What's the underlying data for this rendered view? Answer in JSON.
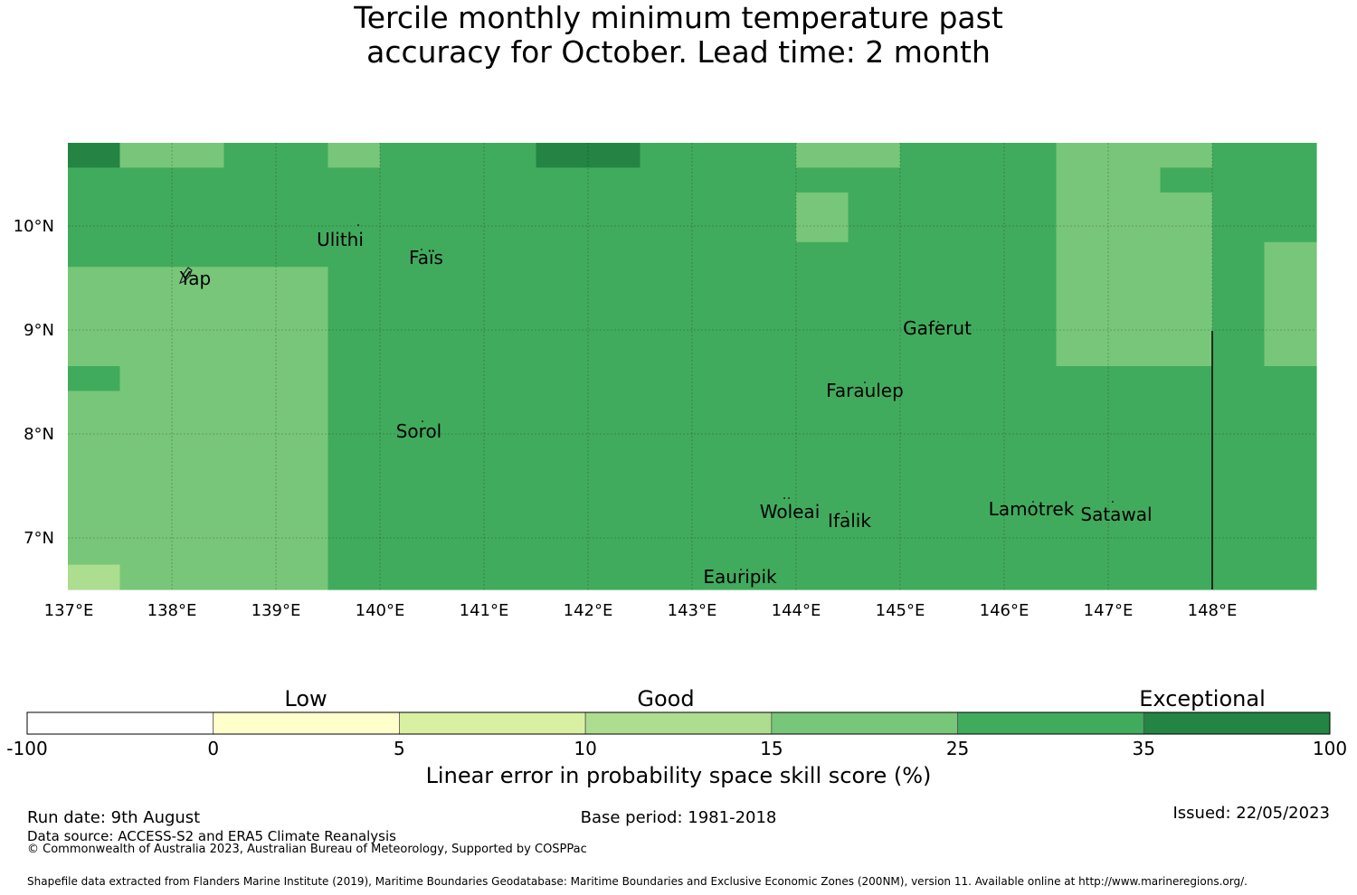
{
  "title": {
    "line1": "Tercile monthly minimum temperature past",
    "line2": "accuracy for October. Lead time: 2 month"
  },
  "map": {
    "lon_range": [
      137.0,
      149.0
    ],
    "lat_range": [
      6.5,
      10.8
    ],
    "lon_ticks": [
      {
        "value": 137,
        "label": "137°E"
      },
      {
        "value": 138,
        "label": "138°E"
      },
      {
        "value": 139,
        "label": "139°E"
      },
      {
        "value": 140,
        "label": "140°E"
      },
      {
        "value": 141,
        "label": "141°E"
      },
      {
        "value": 142,
        "label": "142°E"
      },
      {
        "value": 143,
        "label": "143°E"
      },
      {
        "value": 144,
        "label": "144°E"
      },
      {
        "value": 145,
        "label": "145°E"
      },
      {
        "value": 146,
        "label": "146°E"
      },
      {
        "value": 147,
        "label": "147°E"
      },
      {
        "value": 148,
        "label": "148°E"
      }
    ],
    "lat_ticks": [
      {
        "value": 10,
        "label": "10°N"
      },
      {
        "value": 9,
        "label": "9°N"
      },
      {
        "value": 8,
        "label": "8°N"
      },
      {
        "value": 7,
        "label": "7°N"
      }
    ],
    "grid_cell_deg": 0.833,
    "color_key": [
      "#ffffff",
      "#ffffcc",
      "#d9f0a3",
      "#addd8e",
      "#78c679",
      "#41ab5d",
      "#238443"
    ],
    "cells": [
      [
        6,
        4,
        4,
        5,
        5,
        4,
        5,
        5,
        5,
        6,
        6,
        5,
        5,
        5,
        4,
        4,
        5,
        5,
        5,
        4,
        4,
        4,
        5,
        5
      ],
      [
        5,
        5,
        5,
        5,
        5,
        5,
        5,
        5,
        5,
        5,
        5,
        5,
        5,
        5,
        5,
        5,
        5,
        5,
        5,
        4,
        4,
        5,
        5,
        5
      ],
      [
        5,
        5,
        5,
        5,
        5,
        5,
        5,
        5,
        5,
        5,
        5,
        5,
        5,
        5,
        4,
        5,
        5,
        5,
        5,
        4,
        4,
        4,
        5,
        5
      ],
      [
        5,
        5,
        5,
        5,
        5,
        5,
        5,
        5,
        5,
        5,
        5,
        5,
        5,
        5,
        4,
        5,
        5,
        5,
        5,
        4,
        4,
        4,
        5,
        5
      ],
      [
        5,
        5,
        5,
        5,
        5,
        5,
        5,
        5,
        5,
        5,
        5,
        5,
        5,
        5,
        5,
        5,
        5,
        5,
        5,
        4,
        4,
        4,
        5,
        4
      ],
      [
        4,
        4,
        4,
        4,
        4,
        5,
        5,
        5,
        5,
        5,
        5,
        5,
        5,
        5,
        5,
        5,
        5,
        5,
        5,
        4,
        4,
        4,
        5,
        4
      ],
      [
        4,
        4,
        4,
        4,
        4,
        5,
        5,
        5,
        5,
        5,
        5,
        5,
        5,
        5,
        5,
        5,
        5,
        5,
        5,
        4,
        4,
        4,
        5,
        4
      ],
      [
        4,
        4,
        4,
        4,
        4,
        5,
        5,
        5,
        5,
        5,
        5,
        5,
        5,
        5,
        5,
        5,
        5,
        5,
        5,
        4,
        4,
        4,
        5,
        4
      ],
      [
        4,
        4,
        4,
        4,
        4,
        5,
        5,
        5,
        5,
        5,
        5,
        5,
        5,
        5,
        5,
        5,
        5,
        5,
        5,
        4,
        4,
        4,
        5,
        4
      ],
      [
        5,
        4,
        4,
        4,
        4,
        5,
        5,
        5,
        5,
        5,
        5,
        5,
        5,
        5,
        5,
        5,
        5,
        5,
        5,
        5,
        5,
        5,
        5,
        5
      ],
      [
        4,
        4,
        4,
        4,
        4,
        5,
        5,
        5,
        5,
        5,
        5,
        5,
        5,
        5,
        5,
        5,
        5,
        5,
        5,
        5,
        5,
        5,
        5,
        5
      ],
      [
        4,
        4,
        4,
        4,
        4,
        5,
        5,
        5,
        5,
        5,
        5,
        5,
        5,
        5,
        5,
        5,
        5,
        5,
        5,
        5,
        5,
        5,
        5,
        5
      ],
      [
        4,
        4,
        4,
        4,
        4,
        5,
        5,
        5,
        5,
        5,
        5,
        5,
        5,
        5,
        5,
        5,
        5,
        5,
        5,
        5,
        5,
        5,
        5,
        5
      ],
      [
        4,
        4,
        4,
        4,
        4,
        5,
        5,
        5,
        5,
        5,
        5,
        5,
        5,
        5,
        5,
        5,
        5,
        5,
        5,
        5,
        5,
        5,
        5,
        5
      ],
      [
        4,
        4,
        4,
        4,
        4,
        5,
        5,
        5,
        5,
        5,
        5,
        5,
        5,
        5,
        5,
        5,
        5,
        5,
        5,
        5,
        5,
        5,
        5,
        5
      ],
      [
        4,
        4,
        4,
        4,
        4,
        5,
        5,
        5,
        5,
        5,
        5,
        5,
        5,
        5,
        5,
        5,
        5,
        5,
        5,
        5,
        5,
        5,
        5,
        5
      ],
      [
        4,
        4,
        4,
        4,
        4,
        5,
        5,
        5,
        5,
        5,
        5,
        5,
        5,
        5,
        5,
        5,
        5,
        5,
        5,
        5,
        5,
        5,
        5,
        5
      ],
      [
        3,
        4,
        4,
        4,
        4,
        5,
        5,
        5,
        5,
        5,
        5,
        5,
        5,
        5,
        5,
        5,
        5,
        5,
        5,
        5,
        5,
        5,
        5,
        5
      ]
    ],
    "places": [
      {
        "name": "Ulithi",
        "lon": 139.8,
        "lat": 9.95
      },
      {
        "name": "Faïs",
        "lon": 140.5,
        "lat": 9.75
      },
      {
        "name": "Yap",
        "lon": 138.2,
        "lat": 9.5
      },
      {
        "name": "Gaferut",
        "lon": 145.4,
        "lat": 9.1
      },
      {
        "name": "Faraulep",
        "lon": 144.5,
        "lat": 8.45
      },
      {
        "name": "Sorol",
        "lon": 140.4,
        "lat": 8.05
      },
      {
        "name": "Woleai",
        "lon": 143.9,
        "lat": 7.3
      },
      {
        "name": "Ifalik",
        "lon": 144.5,
        "lat": 7.2
      },
      {
        "name": "Lamotrek",
        "lon": 146.3,
        "lat": 7.3
      },
      {
        "name": "Satawal",
        "lon": 147.0,
        "lat": 7.25
      },
      {
        "name": "Eauripik",
        "lon": 143.5,
        "lat": 6.65
      }
    ]
  },
  "legend": {
    "categories": [
      {
        "label": "Low",
        "value": 2.5
      },
      {
        "label": "Good",
        "value": 12.5
      },
      {
        "label": "Exceptional",
        "value": 50
      }
    ],
    "bounds": [
      "-100",
      "0",
      "5",
      "10",
      "15",
      "25",
      "35",
      "100"
    ],
    "colors": [
      "#ffffff",
      "#ffffcc",
      "#d9f0a3",
      "#addd8e",
      "#78c679",
      "#41ab5d",
      "#238443"
    ],
    "label": "Linear error in probability space skill score (%)"
  },
  "footer": {
    "run_date": "Run date: 9th August",
    "base_period": "Base period: 1981-2018",
    "issued": "Issued: 22/05/2023",
    "data_source": "Data source: ACCESS-S2 and ERA5 Climate Reanalysis",
    "copyright": "© Commonwealth of Australia 2023, Australian Bureau of Meteorology, Supported by COSPPac",
    "shapefile": "Shapefile data extracted from Flanders Marine Institute (2019), Maritime Boundaries Geodatabase: Maritime Boundaries and Exclusive Economic Zones (200NM), version 11. Available online at http://www.marineregions.org/."
  }
}
